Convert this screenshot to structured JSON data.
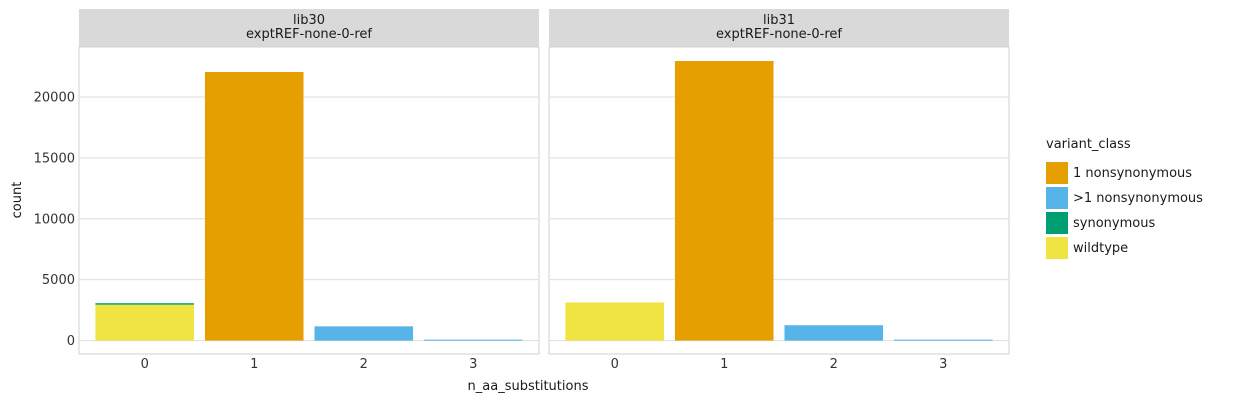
{
  "chart_data": {
    "type": "bar",
    "stacked": true,
    "xlabel": "n_aa_substitutions",
    "ylabel": "count",
    "x_categories": [
      "0",
      "1",
      "2",
      "3"
    ],
    "y_ticks": [
      0,
      5000,
      10000,
      15000,
      20000
    ],
    "ylim": [
      -1100,
      24100
    ],
    "grid": true,
    "legend": {
      "title": "variant_class",
      "position": "right",
      "entries": [
        {
          "label": "1 nonsynonymous",
          "color": "#E69F00"
        },
        {
          "label": ">1 nonsynonymous",
          "color": "#56B4E9"
        },
        {
          "label": "synonymous",
          "color": "#009E73"
        },
        {
          "label": "wildtype",
          "color": "#F0E442"
        }
      ]
    },
    "stack_order": [
      "wildtype",
      "synonymous",
      "1 nonsynonymous",
      ">1 nonsynonymous"
    ],
    "facets": [
      {
        "title_line1": "lib30",
        "title_line2": "exptREF-none-0-ref",
        "series": [
          {
            "name": "wildtype",
            "values": [
              2950,
              0,
              0,
              0
            ]
          },
          {
            "name": "synonymous",
            "values": [
              120,
              0,
              0,
              0
            ]
          },
          {
            "name": "1 nonsynonymous",
            "values": [
              0,
              22050,
              0,
              0
            ]
          },
          {
            "name": ">1 nonsynonymous",
            "values": [
              0,
              0,
              1170,
              80
            ]
          }
        ]
      },
      {
        "title_line1": "lib31",
        "title_line2": "exptREF-none-0-ref",
        "series": [
          {
            "name": "wildtype",
            "values": [
              3130,
              0,
              0,
              0
            ]
          },
          {
            "name": "synonymous",
            "values": [
              0,
              0,
              0,
              0
            ]
          },
          {
            "name": "1 nonsynonymous",
            "values": [
              0,
              22950,
              0,
              0
            ]
          },
          {
            "name": ">1 nonsynonymous",
            "values": [
              0,
              0,
              1260,
              80
            ]
          }
        ]
      }
    ]
  }
}
